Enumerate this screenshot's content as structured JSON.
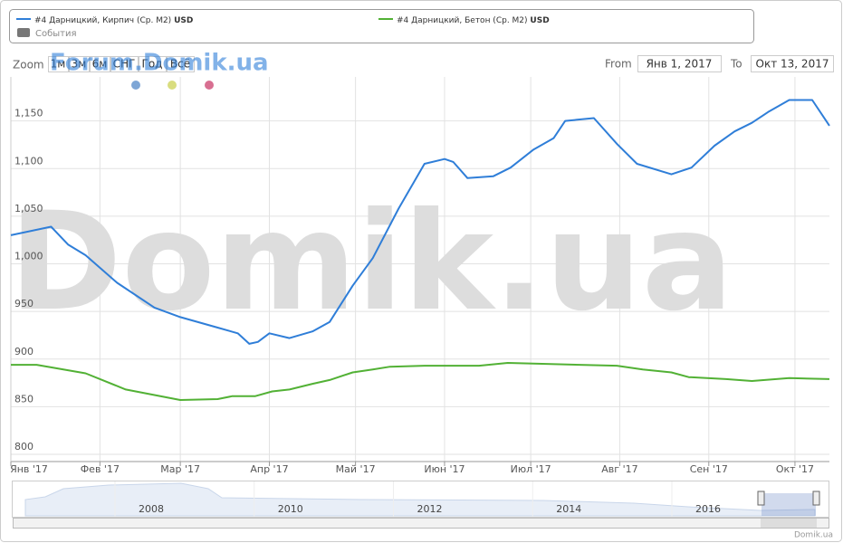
{
  "chart_data": {
    "type": "line",
    "watermark": "Domik.ua",
    "forum_watermark": "Forum.Domik.ua",
    "credit": "Domik.ua",
    "events_label": "События",
    "zoom": {
      "label": "Zoom",
      "buttons": [
        "1м",
        "3м",
        "6м",
        "СНГ",
        "Год",
        "Всё"
      ]
    },
    "range": {
      "from_label": "From",
      "from": "Янв 1, 2017",
      "to_label": "To",
      "to": "Окт 13, 2017"
    },
    "xlim": [
      0,
      285
    ],
    "xticks": [
      {
        "value": 0,
        "label": "Янв '17"
      },
      {
        "value": 31,
        "label": "Фев '17"
      },
      {
        "value": 59,
        "label": "Мар '17"
      },
      {
        "value": 90,
        "label": "Апр '17"
      },
      {
        "value": 120,
        "label": "Май '17"
      },
      {
        "value": 151,
        "label": "Июн '17"
      },
      {
        "value": 181,
        "label": "Июл '17"
      },
      {
        "value": 212,
        "label": "Авг '17"
      },
      {
        "value": 243,
        "label": "Сен '17"
      },
      {
        "value": 273,
        "label": "Окт '17"
      }
    ],
    "ylim": [
      800,
      1200
    ],
    "yticks": [
      800,
      850,
      900,
      950,
      {
        "value": 1000,
        "label": "1,000"
      },
      {
        "value": 1050,
        "label": "1,050"
      },
      {
        "value": 1100,
        "label": "1,100"
      },
      {
        "value": 1150,
        "label": "1,150"
      }
    ],
    "grid": true,
    "series": [
      {
        "name": "#4 Дарницкий, Кирпич (Ср. М2)",
        "unit": "USD",
        "color": "#2f7ed8",
        "x": [
          0,
          14,
          20,
          26,
          37,
          50,
          59,
          72,
          79,
          83,
          86,
          90,
          97,
          105,
          111,
          119,
          126,
          135,
          144,
          151,
          154,
          159,
          168,
          174,
          182,
          189,
          193,
          203,
          211,
          218,
          230,
          237,
          245,
          252,
          258,
          264,
          271,
          279,
          285
        ],
        "values": [
          1030,
          1039,
          1020,
          1009,
          980,
          954,
          944,
          933,
          927,
          916,
          918,
          927,
          922,
          929,
          939,
          977,
          1006,
          1058,
          1105,
          1110,
          1107,
          1090,
          1092,
          1101,
          1120,
          1132,
          1150,
          1153,
          1126,
          1105,
          1094,
          1101,
          1124,
          1139,
          1148,
          1160,
          1172,
          1172,
          1145
        ]
      },
      {
        "name": "#4 Дарницкий, Бетон (Ср. М2)",
        "unit": "USD",
        "color": "#52b135",
        "x": [
          0,
          9,
          26,
          40,
          59,
          72,
          77,
          85,
          91,
          97,
          105,
          111,
          119,
          126,
          132,
          144,
          163,
          173,
          185,
          198,
          211,
          220,
          230,
          236,
          249,
          258,
          271,
          285
        ],
        "values": [
          894,
          894,
          885,
          868,
          857,
          858,
          861,
          861,
          866,
          868,
          874,
          878,
          886,
          889,
          892,
          893,
          893,
          896,
          895,
          894,
          893,
          889,
          886,
          881,
          879,
          877,
          880,
          879
        ]
      }
    ],
    "navigator": {
      "labels": [
        "2008",
        "2010",
        "2012",
        "2014",
        "2016"
      ]
    }
  }
}
